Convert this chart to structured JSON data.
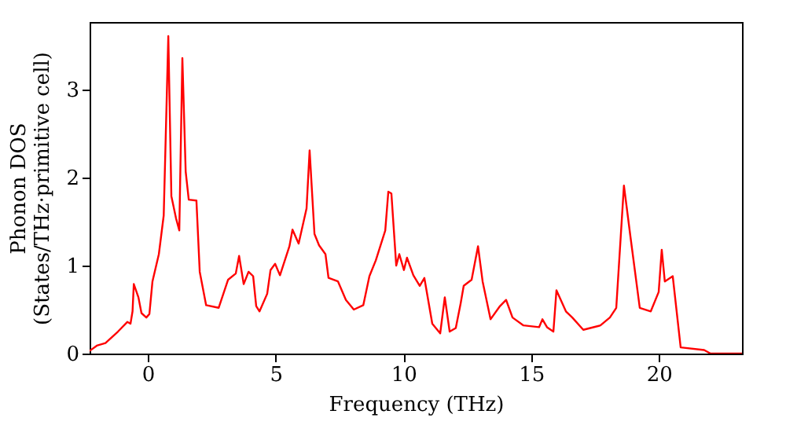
{
  "chart_data": {
    "type": "line",
    "xlabel": "Frequency (THz)",
    "ylabel": "Phonon DOS\n(States/THz·primitive cell)",
    "xlim": [
      -2.28,
      23.25
    ],
    "ylim": [
      0,
      3.77
    ],
    "xticks": [
      0,
      5,
      10,
      15,
      20
    ],
    "yticks": [
      0,
      1,
      2,
      3
    ],
    "grid": false,
    "marker": "none",
    "line_style": "solid",
    "series": [
      {
        "color": "#ff0000",
        "x": [
          -2.28,
          -2.0,
          -1.66,
          -1.17,
          -0.8,
          -0.68,
          -0.6,
          -0.55,
          -0.37,
          -0.25,
          -0.06,
          0.06,
          0.18,
          0.43,
          0.62,
          0.8,
          0.92,
          1.1,
          1.23,
          1.35,
          1.48,
          1.6,
          1.9,
          2.03,
          2.28,
          2.77,
          3.14,
          3.44,
          3.57,
          3.75,
          3.94,
          4.12,
          4.24,
          4.37,
          4.67,
          4.8,
          4.98,
          5.17,
          5.54,
          5.66,
          5.9,
          6.21,
          6.33,
          6.52,
          6.7,
          6.95,
          7.07,
          7.44,
          7.75,
          8.06,
          8.43,
          8.67,
          8.92,
          9.29,
          9.41,
          9.53,
          9.72,
          9.84,
          10.02,
          10.14,
          10.39,
          10.64,
          10.82,
          11.13,
          11.44,
          11.62,
          11.81,
          12.05,
          12.24,
          12.36,
          12.67,
          12.92,
          13.1,
          13.41,
          13.78,
          14.02,
          14.27,
          14.7,
          15.31,
          15.44,
          15.62,
          15.87,
          15.99,
          16.36,
          16.61,
          17.04,
          17.71,
          18.08,
          18.33,
          18.63,
          18.88,
          19.25,
          19.68,
          19.99,
          20.11,
          20.23,
          20.54,
          20.85,
          21.77,
          22.02,
          23.25
        ],
        "values": [
          0.03,
          0.09,
          0.12,
          0.25,
          0.36,
          0.34,
          0.48,
          0.79,
          0.64,
          0.46,
          0.41,
          0.45,
          0.82,
          1.13,
          1.57,
          3.61,
          1.79,
          1.54,
          1.4,
          3.36,
          2.07,
          1.75,
          1.74,
          0.93,
          0.55,
          0.52,
          0.84,
          0.91,
          1.11,
          0.79,
          0.93,
          0.88,
          0.54,
          0.48,
          0.68,
          0.95,
          1.02,
          0.89,
          1.22,
          1.41,
          1.25,
          1.65,
          2.31,
          1.36,
          1.23,
          1.13,
          0.86,
          0.82,
          0.61,
          0.5,
          0.55,
          0.88,
          1.06,
          1.4,
          1.84,
          1.82,
          1.0,
          1.13,
          0.95,
          1.09,
          0.89,
          0.77,
          0.86,
          0.34,
          0.23,
          0.64,
          0.25,
          0.29,
          0.57,
          0.77,
          0.84,
          1.22,
          0.82,
          0.39,
          0.54,
          0.61,
          0.41,
          0.32,
          0.3,
          0.39,
          0.3,
          0.25,
          0.72,
          0.48,
          0.41,
          0.27,
          0.32,
          0.41,
          0.52,
          1.91,
          1.34,
          0.52,
          0.48,
          0.7,
          1.18,
          0.82,
          0.88,
          0.07,
          0.04,
          0,
          0
        ]
      }
    ]
  }
}
